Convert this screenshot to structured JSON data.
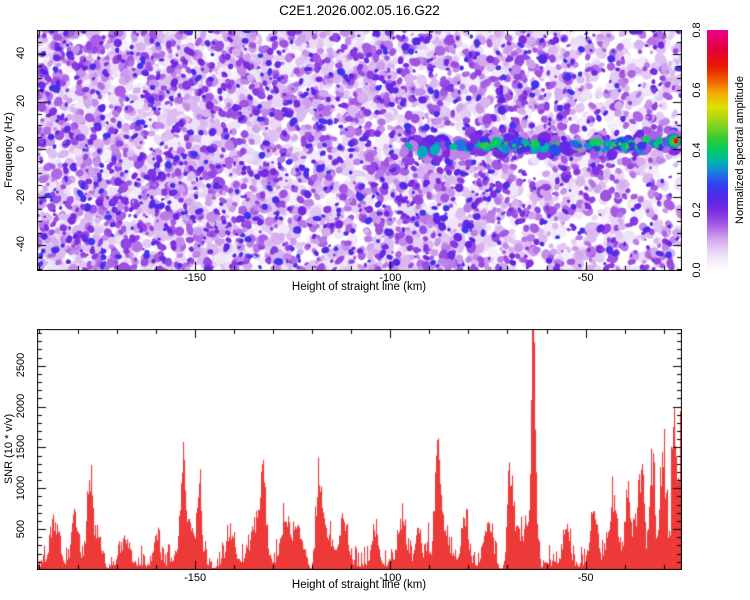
{
  "figure": {
    "title": "C2E1.2026.002.05.16.G22",
    "background_color": "#ffffff",
    "frame_color": "#000000"
  },
  "chart_data": [
    {
      "type": "heatmap",
      "panel": "doppler-spectrogram",
      "xlabel": "Height of straight line (km)",
      "ylabel": "Frequency (Hz)",
      "xlim": [
        -190.5,
        -25.3
      ],
      "ylim": [
        -51,
        50
      ],
      "xticks": [
        -150,
        -100,
        -50
      ],
      "xminor_step": 10,
      "yticks": [
        -40,
        -20,
        0,
        20,
        40
      ],
      "yminor_step": 5,
      "colorbar": {
        "label": "Normalized spectral amplitude",
        "tick_labels": [
          "0.0",
          "0.2",
          "0.4",
          "0.6",
          "0.8"
        ],
        "lim": [
          0.0,
          0.8
        ],
        "stops": [
          [
            0.0,
            "#ffffff"
          ],
          [
            0.07,
            "#ecdff7"
          ],
          [
            0.13,
            "#d4aaee"
          ],
          [
            0.19,
            "#a75ce4"
          ],
          [
            0.25,
            "#7b2be0"
          ],
          [
            0.3,
            "#5526e8"
          ],
          [
            0.36,
            "#2e41f2"
          ],
          [
            0.41,
            "#1e7ce0"
          ],
          [
            0.45,
            "#00b2b2"
          ],
          [
            0.5,
            "#00cc66"
          ],
          [
            0.55,
            "#33cc33"
          ],
          [
            0.62,
            "#99d519"
          ],
          [
            0.68,
            "#e0e000"
          ],
          [
            0.74,
            "#f5a800"
          ],
          [
            0.79,
            "#f06000"
          ],
          [
            0.85,
            "#e71800"
          ],
          [
            0.92,
            "#e6003c"
          ],
          [
            1.0,
            "#e9008c"
          ]
        ]
      },
      "noise": {
        "seed": 20260,
        "pale_blobs": 2600,
        "medium_blobs": 2300,
        "dark_blobs": 1400,
        "right_thinning": 0.45
      },
      "band": {
        "description": "coherent echo band near 0 Hz",
        "x_start_km": -97,
        "x_end_km": -25.3,
        "center_freq_hz": 0,
        "tilt_hz_at_right": 3,
        "halo_count": 130,
        "core_count": 95,
        "bright_count": 22,
        "hotspot": {
          "km": -27.5,
          "freq_hz": 2,
          "amplitude": 0.7
        }
      }
    },
    {
      "type": "line",
      "panel": "snr-profile",
      "xlabel": "Height of straight line (km)",
      "ylabel": "SNR (10 * v/v)",
      "color": "#ee3939",
      "xlim": [
        -190.5,
        -25.3
      ],
      "ylim": [
        0,
        2950
      ],
      "xticks": [
        -150,
        -100,
        -50
      ],
      "xminor_step": 10,
      "yticks": [
        500,
        1000,
        1500,
        2000,
        2500
      ],
      "yminor_step": 100,
      "noise": {
        "seed": 7771,
        "base": 40,
        "spread": 260
      },
      "peaks": [
        [
          -186,
          1.5,
          600
        ],
        [
          -181,
          1.0,
          750
        ],
        [
          -177,
          0.8,
          850
        ],
        [
          -176,
          2.5,
          400
        ],
        [
          -168,
          1.5,
          350
        ],
        [
          -160,
          1.0,
          420
        ],
        [
          -153.3,
          0.7,
          1150
        ],
        [
          -152,
          3,
          450
        ],
        [
          -149,
          0.8,
          900
        ],
        [
          -141,
          1.5,
          420
        ],
        [
          -134,
          2.5,
          600
        ],
        [
          -132.6,
          0.7,
          1100
        ],
        [
          -127,
          1.2,
          620
        ],
        [
          -124,
          2,
          500
        ],
        [
          -118.3,
          1.0,
          900
        ],
        [
          -117,
          3,
          420
        ],
        [
          -112,
          1.5,
          520
        ],
        [
          -104,
          1.2,
          470
        ],
        [
          -97,
          1.5,
          560
        ],
        [
          -93,
          1.0,
          520
        ],
        [
          -88,
          0.8,
          1300
        ],
        [
          -87,
          2.5,
          520
        ],
        [
          -81,
          1.2,
          650
        ],
        [
          -75,
          1.5,
          620
        ],
        [
          -69.5,
          0.8,
          1100
        ],
        [
          -68,
          2,
          520
        ],
        [
          -63.5,
          0.55,
          3400
        ],
        [
          -63.5,
          2.2,
          800
        ],
        [
          -55,
          1.2,
          520
        ],
        [
          -48,
          1.2,
          700
        ],
        [
          -43,
          1.5,
          800
        ],
        [
          -39,
          1.0,
          900
        ],
        [
          -36,
          1.2,
          1000
        ],
        [
          -33,
          0.8,
          1200
        ],
        [
          -30,
          1.0,
          1100
        ],
        [
          -27.5,
          0.8,
          1300
        ],
        [
          -25.5,
          1.0,
          1200
        ]
      ],
      "dips": [
        -172.5,
        -145,
        -120.5,
        -71.8,
        -61.3
      ],
      "right_rise": {
        "start_km": -52,
        "max_extra": 800
      }
    }
  ]
}
